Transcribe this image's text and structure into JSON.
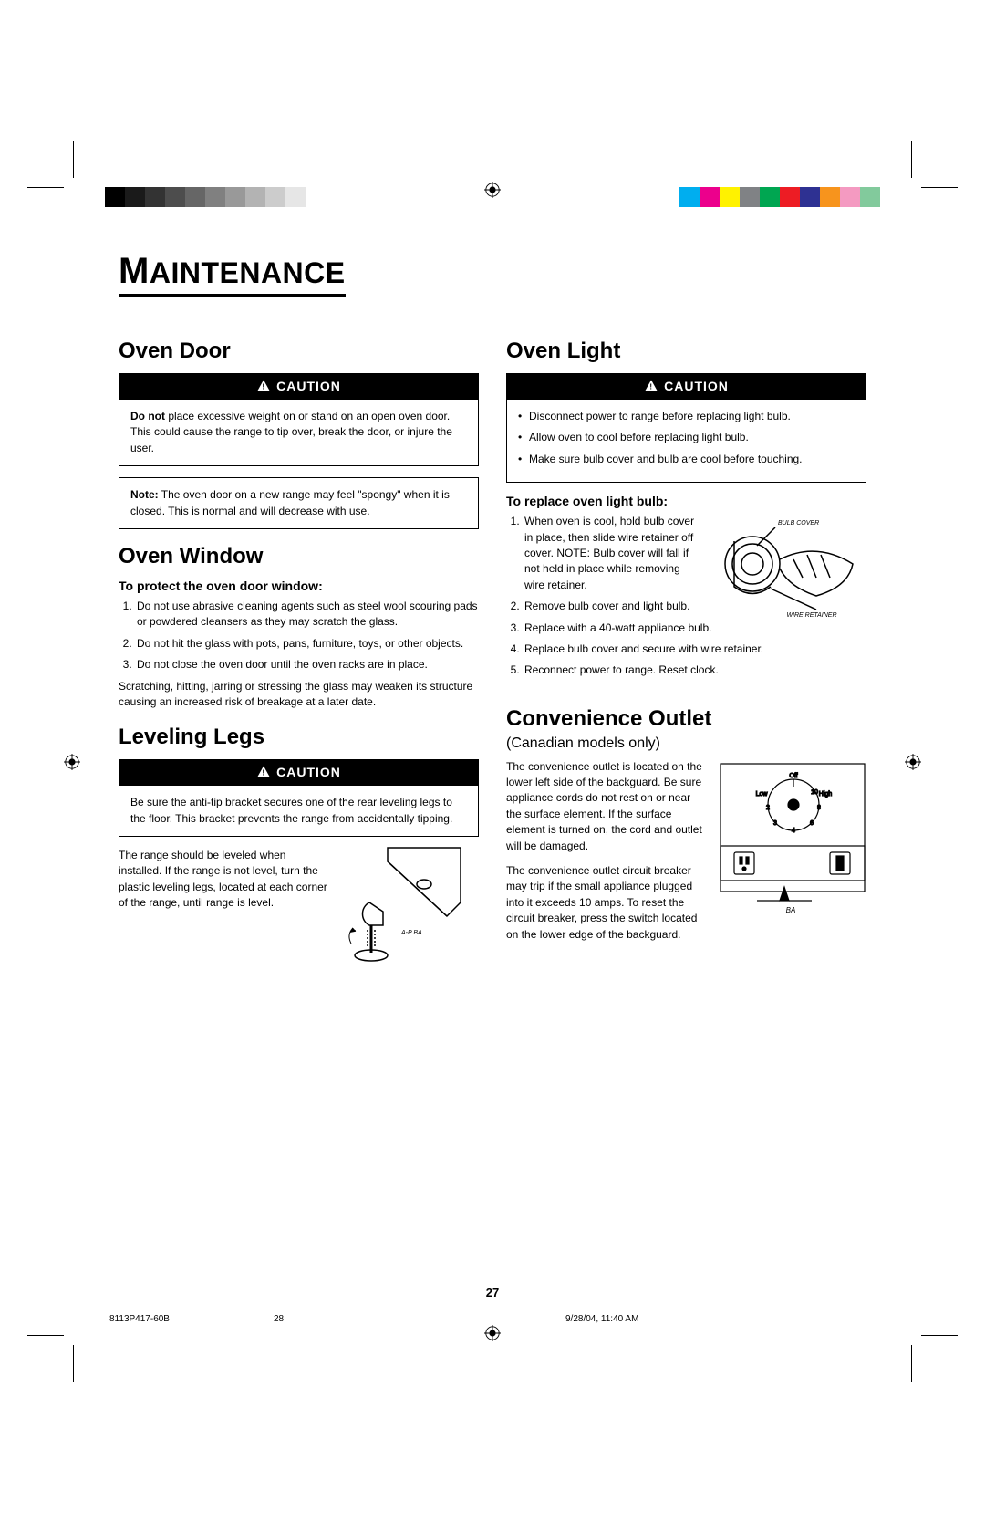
{
  "title_first": "M",
  "title_rest": "AINTENANCE",
  "col_left": {
    "oven_door": {
      "heading": "Oven Door",
      "caution_label": "CAUTION",
      "caution_text_pre": "Do not",
      "caution_text": " place excessive weight on or stand on an open oven door. This could cause the range to tip over, break the door, or injure the user.",
      "note_pre": "Note:",
      "note_text": " The oven door on a new range may feel \"spongy\" when it is closed. This is normal and will decrease with use."
    },
    "oven_window": {
      "heading": "Oven Window",
      "sub": "To protect the oven door window:",
      "items": [
        "Do not use abrasive cleaning agents such as steel wool scouring pads or powdered cleansers as they may scratch the glass.",
        "Do not hit the glass with pots, pans, furniture, toys, or other objects.",
        "Do not close the oven door until the oven racks are in place."
      ],
      "para": "Scratching, hitting, jarring or stressing the glass may weaken its structure causing an increased risk of breakage at a later date."
    },
    "leveling": {
      "heading": "Leveling Legs",
      "caution_label": "CAUTION",
      "caution_text": "Be sure the anti-tip bracket secures one of the rear leveling legs to the floor. This bracket prevents the range from accidentally tipping.",
      "para": "The range should be leveled when installed.  If the range is not level, turn the plastic leveling legs, located at each corner of the range, until range is level.",
      "fig_label": "A-P BA"
    }
  },
  "col_right": {
    "oven_light": {
      "heading": "Oven Light",
      "caution_label": "CAUTION",
      "items": [
        "Disconnect power to range before replacing light bulb.",
        "Allow oven to cool before replacing light bulb.",
        "Make sure bulb cover and bulb are cool before touching."
      ],
      "sub": "To replace oven light bulb:",
      "steps": [
        "When oven is cool, hold bulb cover in place, then slide wire retainer off cover. NOTE: Bulb cover will fall if not held in place while removing wire retainer.",
        "Remove bulb cover and light bulb.",
        "Replace with a 40-watt appliance bulb.",
        "Replace bulb cover and secure with wire retainer.",
        "Reconnect power to range. Reset clock."
      ],
      "fig_label1": "BULB COVER",
      "fig_label2": "WIRE RETAINER"
    },
    "outlet": {
      "heading": "Convenience Outlet",
      "subtitle": "(Canadian models only)",
      "para1": "The convenience outlet is located on the lower left side of the backguard. Be sure appliance cords do not rest on or near the surface element. If the surface element is turned on, the cord and outlet will be damaged.",
      "para2": "The convenience outlet circuit breaker may trip if the small appliance plugged into it exceeds 10 amps. To reset the circuit breaker, press the switch located on the lower edge of the backguard.",
      "fig_label": "BA",
      "dial_labels": {
        "off": "Off",
        "low": "Low",
        "high": "High"
      }
    }
  },
  "page_number": "27",
  "footer": {
    "left": "8113P417-60B",
    "mid": "28",
    "right": "9/28/04, 11:40 AM"
  },
  "colors": {
    "gray_bar": [
      "#000000",
      "#1a1a1a",
      "#333333",
      "#4d4d4d",
      "#666666",
      "#808080",
      "#999999",
      "#b3b3b3",
      "#cccccc",
      "#e6e6e6"
    ],
    "color_bar": [
      "#00aeef",
      "#ec008c",
      "#fff200",
      "#808285",
      "#00a651",
      "#ed1c24",
      "#2e3192",
      "#f7941d",
      "#f49ac1",
      "#82ca9c"
    ]
  }
}
